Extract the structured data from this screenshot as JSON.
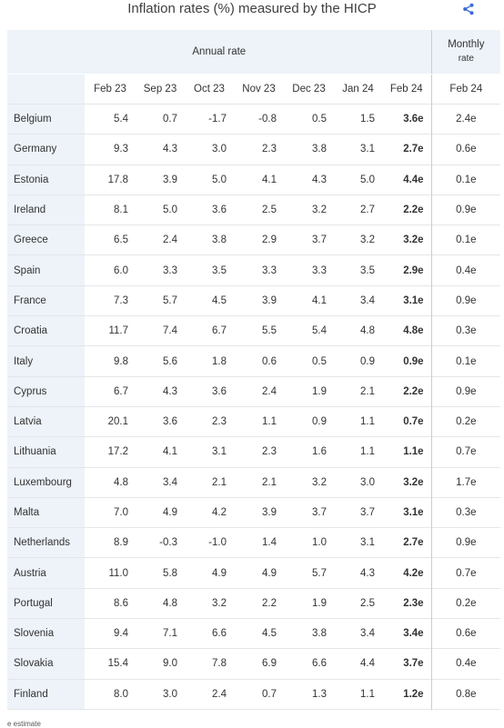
{
  "title": "Inflation rates (%) measured by the HICP",
  "share_icon": "share-icon",
  "colors": {
    "header_bg": "#edf3f9",
    "share_icon": "#3c6bd6"
  },
  "header": {
    "annual_label": "Annual rate",
    "monthly_label_line1": "Monthly",
    "monthly_label_line2": "rate",
    "columns": [
      "Feb 23",
      "Sep 23",
      "Oct 23",
      "Nov 23",
      "Dec 23",
      "Jan 24",
      "Feb 24",
      "Feb 24"
    ]
  },
  "rows": [
    {
      "country": "Belgium",
      "values": [
        "5.4",
        "0.7",
        "-1.7",
        "-0.8",
        "0.5",
        "1.5",
        "3.6e"
      ],
      "monthly": "2.4e"
    },
    {
      "country": "Germany",
      "values": [
        "9.3",
        "4.3",
        "3.0",
        "2.3",
        "3.8",
        "3.1",
        "2.7e"
      ],
      "monthly": "0.6e"
    },
    {
      "country": "Estonia",
      "values": [
        "17.8",
        "3.9",
        "5.0",
        "4.1",
        "4.3",
        "5.0",
        "4.4e"
      ],
      "monthly": "0.1e"
    },
    {
      "country": "Ireland",
      "values": [
        "8.1",
        "5.0",
        "3.6",
        "2.5",
        "3.2",
        "2.7",
        "2.2e"
      ],
      "monthly": "0.9e"
    },
    {
      "country": "Greece",
      "values": [
        "6.5",
        "2.4",
        "3.8",
        "2.9",
        "3.7",
        "3.2",
        "3.2e"
      ],
      "monthly": "0.1e"
    },
    {
      "country": "Spain",
      "values": [
        "6.0",
        "3.3",
        "3.5",
        "3.3",
        "3.3",
        "3.5",
        "2.9e"
      ],
      "monthly": "0.4e"
    },
    {
      "country": "France",
      "values": [
        "7.3",
        "5.7",
        "4.5",
        "3.9",
        "4.1",
        "3.4",
        "3.1e"
      ],
      "monthly": "0.9e"
    },
    {
      "country": "Croatia",
      "values": [
        "11.7",
        "7.4",
        "6.7",
        "5.5",
        "5.4",
        "4.8",
        "4.8e"
      ],
      "monthly": "0.3e"
    },
    {
      "country": "Italy",
      "values": [
        "9.8",
        "5.6",
        "1.8",
        "0.6",
        "0.5",
        "0.9",
        "0.9e"
      ],
      "monthly": "0.1e"
    },
    {
      "country": "Cyprus",
      "values": [
        "6.7",
        "4.3",
        "3.6",
        "2.4",
        "1.9",
        "2.1",
        "2.2e"
      ],
      "monthly": "0.9e"
    },
    {
      "country": "Latvia",
      "values": [
        "20.1",
        "3.6",
        "2.3",
        "1.1",
        "0.9",
        "1.1",
        "0.7e"
      ],
      "monthly": "0.2e"
    },
    {
      "country": "Lithuania",
      "values": [
        "17.2",
        "4.1",
        "3.1",
        "2.3",
        "1.6",
        "1.1",
        "1.1e"
      ],
      "monthly": "0.7e"
    },
    {
      "country": "Luxembourg",
      "values": [
        "4.8",
        "3.4",
        "2.1",
        "2.1",
        "3.2",
        "3.0",
        "3.2e"
      ],
      "monthly": "1.7e"
    },
    {
      "country": "Malta",
      "values": [
        "7.0",
        "4.9",
        "4.2",
        "3.9",
        "3.7",
        "3.7",
        "3.1e"
      ],
      "monthly": "0.3e"
    },
    {
      "country": "Netherlands",
      "values": [
        "8.9",
        "-0.3",
        "-1.0",
        "1.4",
        "1.0",
        "3.1",
        "2.7e"
      ],
      "monthly": "0.9e"
    },
    {
      "country": "Austria",
      "values": [
        "11.0",
        "5.8",
        "4.9",
        "4.9",
        "5.7",
        "4.3",
        "4.2e"
      ],
      "monthly": "0.7e"
    },
    {
      "country": "Portugal",
      "values": [
        "8.6",
        "4.8",
        "3.2",
        "2.2",
        "1.9",
        "2.5",
        "2.3e"
      ],
      "monthly": "0.2e"
    },
    {
      "country": "Slovenia",
      "values": [
        "9.4",
        "7.1",
        "6.6",
        "4.5",
        "3.8",
        "3.4",
        "3.4e"
      ],
      "monthly": "0.6e"
    },
    {
      "country": "Slovakia",
      "values": [
        "15.4",
        "9.0",
        "7.8",
        "6.9",
        "6.6",
        "4.4",
        "3.7e"
      ],
      "monthly": "0.4e"
    },
    {
      "country": "Finland",
      "values": [
        "8.0",
        "3.0",
        "2.4",
        "0.7",
        "1.3",
        "1.1",
        "1.2e"
      ],
      "monthly": "0.8e"
    }
  ],
  "footnote": "e estimate"
}
